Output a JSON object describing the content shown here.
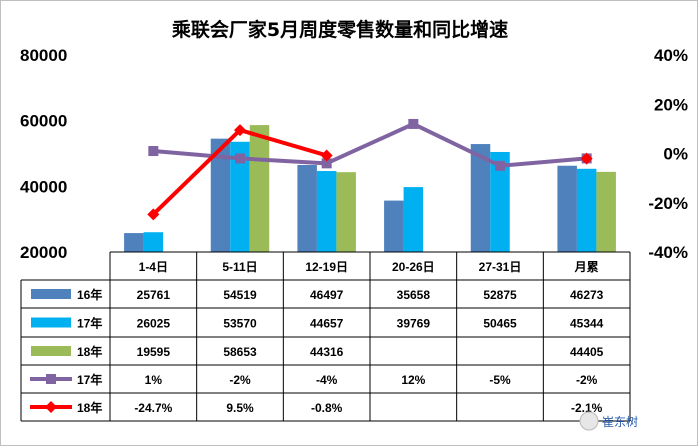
{
  "chart_data": {
    "type": "bar",
    "title": "乘联会厂家5月周度零售数量和同比增速",
    "categories": [
      "1-4日",
      "5-11日",
      "12-19日",
      "20-26日",
      "27-31日",
      "月累"
    ],
    "y_left": {
      "ylim": [
        20000,
        80000
      ],
      "ticks": [
        "20000",
        "40000",
        "60000",
        "80000"
      ]
    },
    "y_right": {
      "ylim": [
        -40,
        40
      ],
      "unit": "%",
      "ticks": [
        "-40%",
        "-20%",
        "0%",
        "20%",
        "40%"
      ]
    },
    "grid": false,
    "legend": "table-below",
    "series": [
      {
        "name": "16年",
        "kind": "bar",
        "color": "#4f81bd",
        "values": [
          25761,
          54519,
          46497,
          35658,
          52875,
          46273
        ],
        "labels": [
          "25761",
          "54519",
          "46497",
          "35658",
          "52875",
          "46273"
        ]
      },
      {
        "name": "17年",
        "kind": "bar",
        "color": "#00b0f0",
        "values": [
          26025,
          53570,
          44657,
          39769,
          50465,
          45344
        ],
        "labels": [
          "26025",
          "53570",
          "44657",
          "39769",
          "50465",
          "45344"
        ]
      },
      {
        "name": "18年",
        "kind": "bar",
        "color": "#9bbb59",
        "values": [
          19595,
          58653,
          44316,
          null,
          null,
          44405
        ],
        "labels": [
          "19595",
          "58653",
          "44316",
          "",
          "",
          "44405"
        ]
      },
      {
        "name": "17年",
        "kind": "line",
        "axis": "right",
        "color": "#8064a2",
        "values": [
          1,
          -2,
          -4,
          12,
          -5,
          -2
        ],
        "labels": [
          "1%",
          "-2%",
          "-4%",
          "12%",
          "-5%",
          "-2%"
        ]
      },
      {
        "name": "18年",
        "kind": "line",
        "axis": "right",
        "color": "#ff0000",
        "values": [
          -24.7,
          9.5,
          -0.8,
          null,
          null,
          -2.1
        ],
        "labels": [
          "-24.7%",
          "9.5%",
          "-0.8%",
          "",
          "",
          "-2.1%"
        ]
      }
    ]
  },
  "watermark": "崔东树"
}
